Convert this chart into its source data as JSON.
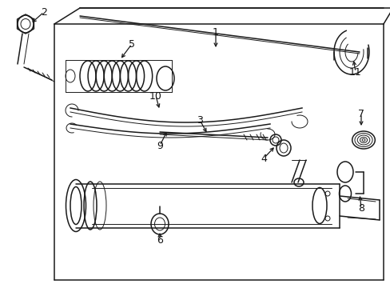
{
  "bg_color": "#ffffff",
  "line_color": "#1a1a1a",
  "label_color": "#111111",
  "figsize": [
    4.89,
    3.6
  ],
  "dpi": 100
}
